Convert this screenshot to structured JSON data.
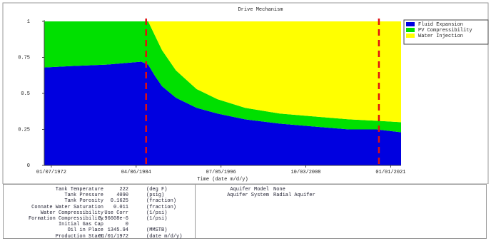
{
  "chart_data": {
    "type": "stacked-area",
    "title": "Drive Mechanism",
    "x_label": "Time (date m/d/y)",
    "x": [
      1971,
      1975,
      1980,
      1985,
      1986,
      1987,
      1988,
      1990,
      1993,
      1996,
      2000,
      2005,
      2010,
      2015,
      2019,
      2022.5
    ],
    "series": [
      {
        "name": "Fluid Expansion",
        "color": "#0000e0",
        "values": [
          0.68,
          0.69,
          0.7,
          0.72,
          0.7,
          0.62,
          0.55,
          0.47,
          0.4,
          0.36,
          0.32,
          0.29,
          0.27,
          0.25,
          0.25,
          0.23
        ]
      },
      {
        "name": "PV Compressibility",
        "color": "#00e000",
        "values": [
          0.32,
          0.31,
          0.3,
          0.28,
          0.3,
          0.28,
          0.25,
          0.19,
          0.13,
          0.1,
          0.08,
          0.07,
          0.07,
          0.07,
          0.06,
          0.07
        ]
      },
      {
        "name": "Water Injection",
        "color": "#ffff00",
        "values": [
          0,
          0,
          0,
          0,
          0,
          0.1,
          0.2,
          0.34,
          0.47,
          0.54,
          0.6,
          0.64,
          0.66,
          0.68,
          0.69,
          0.7
        ]
      }
    ],
    "xlim": [
      1971,
      2022.5
    ],
    "xticks": [
      {
        "value": 1972.02,
        "label": "01/07/1972"
      },
      {
        "value": 1984.26,
        "label": "04/06/1984"
      },
      {
        "value": 1996.51,
        "label": "07/05/1996"
      },
      {
        "value": 2008.75,
        "label": "10/03/2008"
      },
      {
        "value": 2021.0,
        "label": "01/01/2021"
      }
    ],
    "ylim": [
      0,
      1
    ],
    "yticks": [
      0,
      0.25,
      0.5,
      0.75,
      1
    ],
    "markers": {
      "color": "#e01010",
      "x": [
        1985.7,
        2019.3
      ]
    },
    "legend": "right",
    "grid": false
  },
  "panel": {
    "left_rows": [
      [
        "Tank Temperature",
        "222",
        "(deg F)"
      ],
      [
        "Tank Pressure",
        "4090",
        "(psig)"
      ],
      [
        "Tank Porosity",
        "0.1625",
        "(fraction)"
      ],
      [
        "Connate Water Saturation",
        "0.011",
        "(fraction)"
      ],
      [
        "Water Compressibility",
        "Use Corr",
        "(1/psi)"
      ],
      [
        "Formation Compressibility",
        "3.96608e-6",
        "(1/psi)"
      ],
      [
        "Initial Gas Cap",
        "0"
      ],
      [
        "Oil in Place",
        "1345.94",
        "(MMSTB)"
      ],
      [
        "Production Start",
        "01/01/1972",
        "(date m/d/y)"
      ]
    ],
    "right_rows": [
      [
        "Aquifer Model",
        "None"
      ],
      [
        "Aquifer System",
        "Radial Aquifer"
      ]
    ]
  }
}
